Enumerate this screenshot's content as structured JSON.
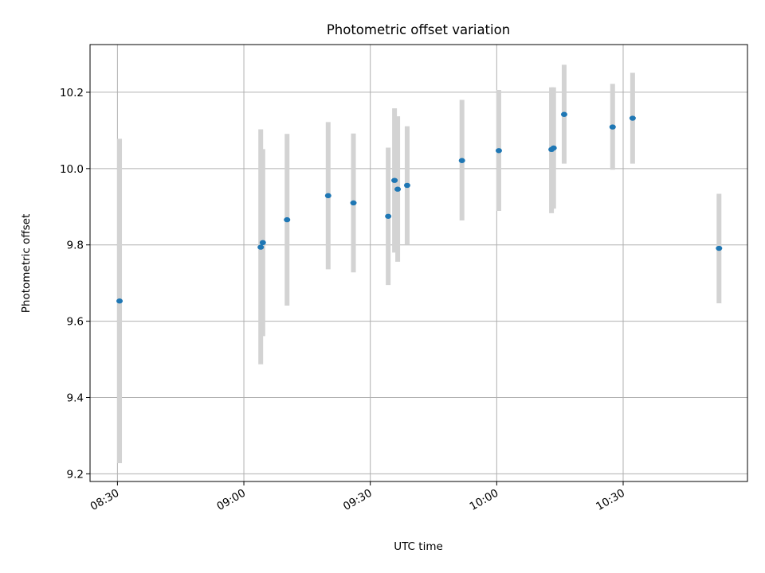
{
  "chart_data": {
    "type": "scatter",
    "title": "Photometric offset variation",
    "xlabel": "UTC time",
    "ylabel": "Photometric offset",
    "x_ticks": [
      "08:30",
      "09:00",
      "09:30",
      "10:00",
      "10:30"
    ],
    "x_tick_minutes": [
      510,
      540,
      570,
      600,
      630
    ],
    "xlim_minutes": [
      503.5,
      659.5
    ],
    "ylim": [
      9.18,
      10.325
    ],
    "y_ticks": [
      9.2,
      9.4,
      9.6,
      9.8,
      10.0,
      10.2
    ],
    "y_tick_labels": [
      "9.2",
      "9.4",
      "9.6",
      "9.8",
      "10.0",
      "10.2"
    ],
    "grid": true,
    "colors": {
      "point": "#1f77b4",
      "errorbar": "#d3d3d3",
      "grid": "#b0b0b0"
    },
    "points": [
      {
        "t": "08:30:30",
        "y": 9.653,
        "ylow": 9.228,
        "yhigh": 10.078
      },
      {
        "t": "09:04:00",
        "y": 9.794,
        "ylow": 9.487,
        "yhigh": 10.103
      },
      {
        "t": "09:04:30",
        "y": 9.806,
        "ylow": 9.561,
        "yhigh": 10.051
      },
      {
        "t": "09:10:15",
        "y": 9.866,
        "ylow": 9.641,
        "yhigh": 10.091
      },
      {
        "t": "09:20:00",
        "y": 9.929,
        "ylow": 9.736,
        "yhigh": 10.122
      },
      {
        "t": "09:26:00",
        "y": 9.91,
        "ylow": 9.728,
        "yhigh": 10.092
      },
      {
        "t": "09:34:15",
        "y": 9.875,
        "ylow": 9.695,
        "yhigh": 10.055
      },
      {
        "t": "09:35:45",
        "y": 9.969,
        "ylow": 9.78,
        "yhigh": 10.158
      },
      {
        "t": "09:36:30",
        "y": 9.946,
        "ylow": 9.756,
        "yhigh": 10.137
      },
      {
        "t": "09:38:45",
        "y": 9.956,
        "ylow": 9.8,
        "yhigh": 10.111
      },
      {
        "t": "09:51:45",
        "y": 10.021,
        "ylow": 9.864,
        "yhigh": 10.18
      },
      {
        "t": "10:00:30",
        "y": 10.047,
        "ylow": 9.889,
        "yhigh": 10.206
      },
      {
        "t": "10:13:00",
        "y": 10.05,
        "ylow": 9.883,
        "yhigh": 10.213
      },
      {
        "t": "10:13:30",
        "y": 10.054,
        "ylow": 9.895,
        "yhigh": 10.213
      },
      {
        "t": "10:16:00",
        "y": 10.142,
        "ylow": 10.013,
        "yhigh": 10.272
      },
      {
        "t": "10:27:30",
        "y": 10.109,
        "ylow": 9.997,
        "yhigh": 10.222
      },
      {
        "t": "10:32:15",
        "y": 10.132,
        "ylow": 10.013,
        "yhigh": 10.251
      },
      {
        "t": "10:52:45",
        "y": 9.791,
        "ylow": 9.647,
        "yhigh": 9.934
      }
    ]
  }
}
